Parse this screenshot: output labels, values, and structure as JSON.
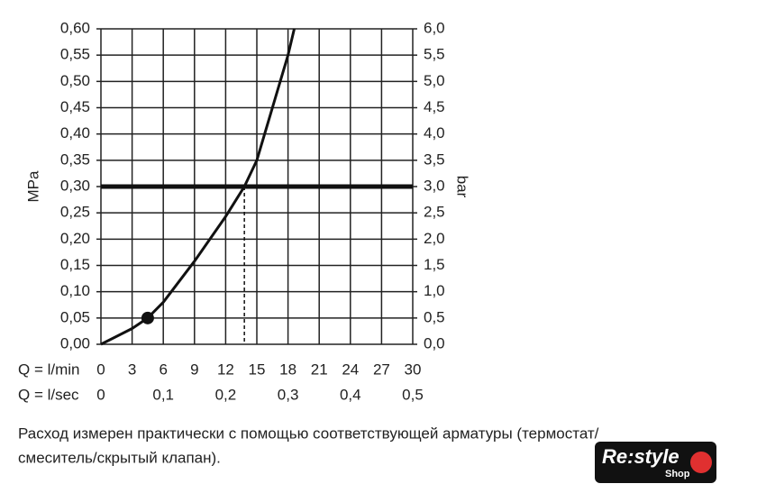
{
  "chart_data": {
    "type": "line",
    "x": [
      0,
      3,
      4.5,
      6,
      9,
      12,
      13.8,
      15,
      16.5,
      18,
      18.6
    ],
    "series": [
      {
        "color": "#111111",
        "values": [
          0,
          0.03,
          0.05,
          0.08,
          0.158,
          0.243,
          0.3,
          0.35,
          0.45,
          0.55,
          0.6
        ]
      }
    ],
    "xlim": [
      0,
      30
    ],
    "xticks": [
      0,
      3,
      6,
      9,
      12,
      15,
      18,
      21,
      24,
      27,
      30
    ],
    "x_label": "Q = l/min",
    "x2lim": [
      0,
      0.5
    ],
    "x2ticks": [
      0,
      {
        "value": 0.1,
        "label": "0,1"
      },
      {
        "value": 0.2,
        "label": "0,2"
      },
      {
        "value": 0.3,
        "label": "0,3"
      },
      {
        "value": 0.4,
        "label": "0,4"
      },
      {
        "value": 0.5,
        "label": "0,5"
      }
    ],
    "x2_label": "Q = l/sec",
    "ylim": [
      0,
      0.6
    ],
    "yticks": [
      {
        "value": 0,
        "label": "0,00"
      },
      {
        "value": 0.05,
        "label": "0,05"
      },
      {
        "value": 0.1,
        "label": "0,10"
      },
      {
        "value": 0.15,
        "label": "0,15"
      },
      {
        "value": 0.2,
        "label": "0,20"
      },
      {
        "value": 0.25,
        "label": "0,25"
      },
      {
        "value": 0.3,
        "label": "0,30"
      },
      {
        "value": 0.35,
        "label": "0,35"
      },
      {
        "value": 0.4,
        "label": "0,40"
      },
      {
        "value": 0.45,
        "label": "0,45"
      },
      {
        "value": 0.5,
        "label": "0,50"
      },
      {
        "value": 0.55,
        "label": "0,55"
      },
      {
        "value": 0.6,
        "label": "0,60"
      }
    ],
    "y_label": "MPa",
    "y2lim": [
      0,
      6
    ],
    "y2ticks": [
      {
        "value": 0,
        "label": "0,0"
      },
      {
        "value": 0.5,
        "label": "0,5"
      },
      {
        "value": 1,
        "label": "1,0"
      },
      {
        "value": 1.5,
        "label": "1,5"
      },
      {
        "value": 2,
        "label": "2,0"
      },
      {
        "value": 2.5,
        "label": "2,5"
      },
      {
        "value": 3,
        "label": "3,0"
      },
      {
        "value": 3.5,
        "label": "3,5"
      },
      {
        "value": 4,
        "label": "4,0"
      },
      {
        "value": 4.5,
        "label": "4,5"
      },
      {
        "value": 5,
        "label": "5,0"
      },
      {
        "value": 5.5,
        "label": "5,5"
      },
      {
        "value": 6,
        "label": "6,0"
      }
    ],
    "y2_label": "bar",
    "grid": true,
    "hline": 0.3,
    "vline": 13.8,
    "marker": {
      "x": 4.5,
      "y": 0.05
    }
  },
  "caption": [
    "Расход измерен практически с помощью соответствующей арматуры (термостат/",
    "смеситель/скрытый клапан)."
  ],
  "logo": {
    "text": "Re:style",
    "sub": "Shop"
  }
}
